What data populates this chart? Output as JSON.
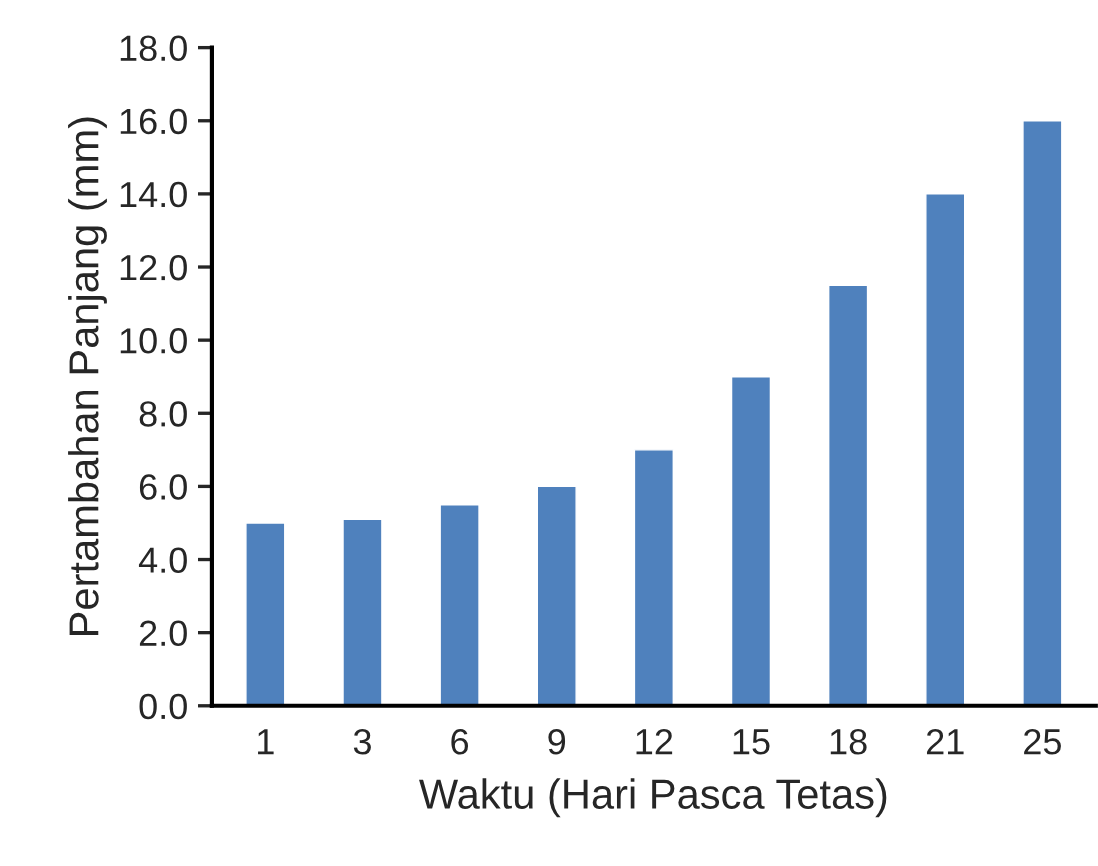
{
  "chart_data": {
    "type": "bar",
    "xlabel": "Waktu (Hari Pasca Tetas)",
    "ylabel": "Pertambahan Panjang (mm)",
    "categories": [
      "1",
      "3",
      "6",
      "9",
      "12",
      "15",
      "18",
      "21",
      "25"
    ],
    "values": [
      5.0,
      5.1,
      5.5,
      6.0,
      7.0,
      9.0,
      11.5,
      14.0,
      16.0
    ],
    "color": "#4f81bd",
    "ylim": [
      0,
      18
    ],
    "yticks": [
      {
        "value": 0,
        "label": "0.0"
      },
      {
        "value": 2,
        "label": "2.0"
      },
      {
        "value": 4,
        "label": "4.0"
      },
      {
        "value": 6,
        "label": "6.0"
      },
      {
        "value": 8,
        "label": "8.0"
      },
      {
        "value": 10,
        "label": "10.0"
      },
      {
        "value": 12,
        "label": "12.0"
      },
      {
        "value": 14,
        "label": "14.0"
      },
      {
        "value": 16,
        "label": "16.0"
      },
      {
        "value": 18,
        "label": "18.0"
      }
    ],
    "grid": false
  }
}
